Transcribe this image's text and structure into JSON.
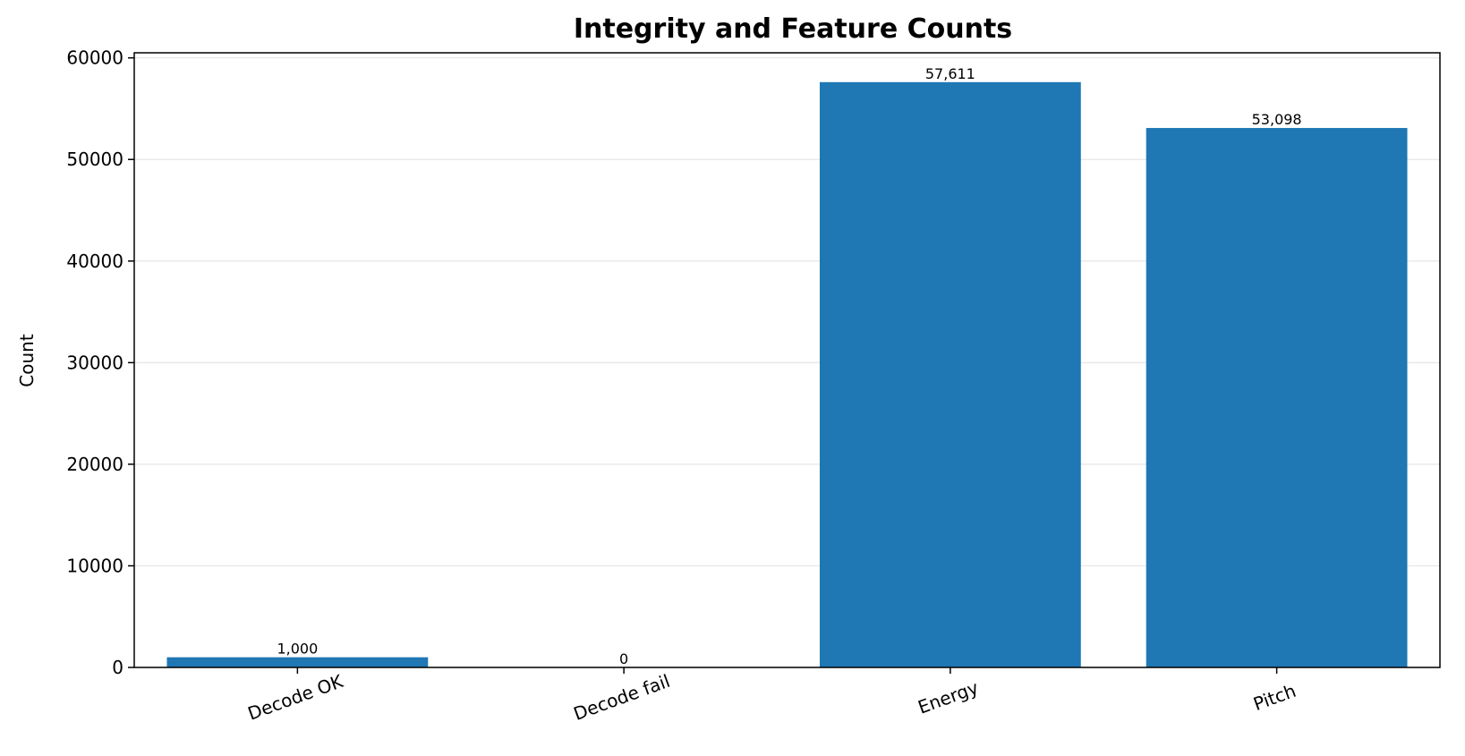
{
  "chart_data": {
    "type": "bar",
    "title": "Integrity and Feature Counts",
    "xlabel": "",
    "ylabel": "Count",
    "categories": [
      "Decode OK",
      "Decode fail",
      "Energy",
      "Pitch"
    ],
    "values": [
      1000,
      0,
      57611,
      53098
    ],
    "data_labels": [
      "1,000",
      "0",
      "57,611",
      "53,098"
    ],
    "ylim": [
      0,
      60500
    ],
    "yticks": [
      0,
      10000,
      20000,
      30000,
      40000,
      50000,
      60000
    ],
    "ytick_labels": [
      "0",
      "10000",
      "20000",
      "30000",
      "40000",
      "50000",
      "60000"
    ],
    "grid": "horizontal",
    "bar_color": "#1f77b4",
    "grid_color": "#e6e6e6"
  }
}
